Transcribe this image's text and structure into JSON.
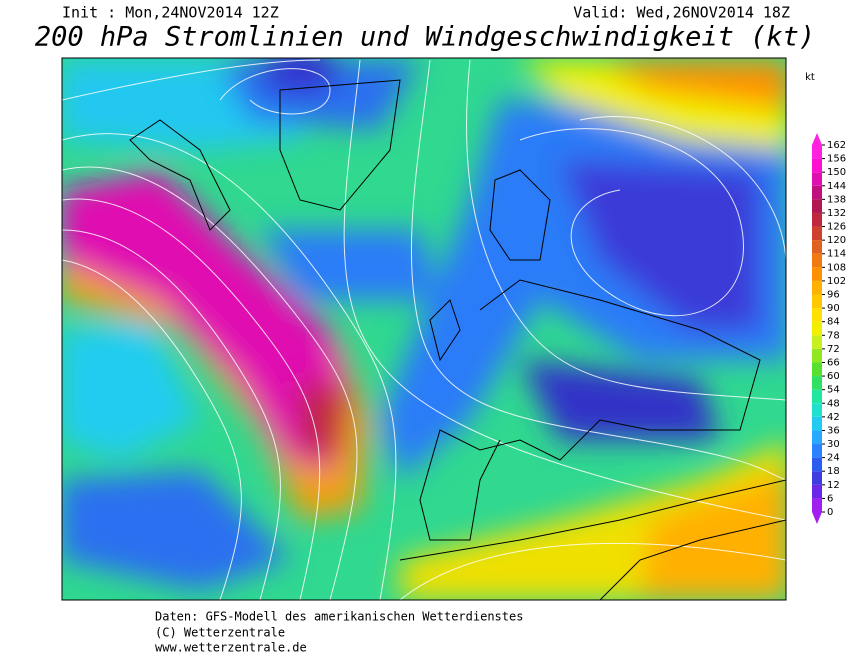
{
  "header": {
    "init": "Init : Mon,24NOV2014 12Z",
    "valid": "Valid: Wed,26NOV2014 18Z",
    "title": "200 hPa Stromlinien und Windgeschwindigkeit (kt)"
  },
  "colorbar": {
    "unit": "kt",
    "ticks": [
      0,
      6,
      12,
      18,
      24,
      30,
      36,
      42,
      48,
      54,
      60,
      66,
      72,
      78,
      84,
      90,
      96,
      102,
      108,
      114,
      120,
      126,
      132,
      138,
      144,
      150,
      156,
      162
    ],
    "colors": [
      "#a020f0",
      "#6a28e8",
      "#3c3ce0",
      "#2a5cf0",
      "#2a82ff",
      "#28a8ff",
      "#22ccf0",
      "#20e0d0",
      "#20e8a0",
      "#30e060",
      "#58e030",
      "#90e820",
      "#c8f020",
      "#f0f000",
      "#ffe000",
      "#ffc800",
      "#ffb000",
      "#ff9000",
      "#f07a10",
      "#e06020",
      "#d04030",
      "#c02840",
      "#b01850",
      "#c01080",
      "#e010b0",
      "#ff10d0",
      "#ff20e0"
    ]
  },
  "footer": {
    "line1": "Daten: GFS-Modell des amerikanischen Wetterdienstes",
    "line2": "(C) Wetterzentrale",
    "line3": "www.wetterzentrale.de"
  }
}
